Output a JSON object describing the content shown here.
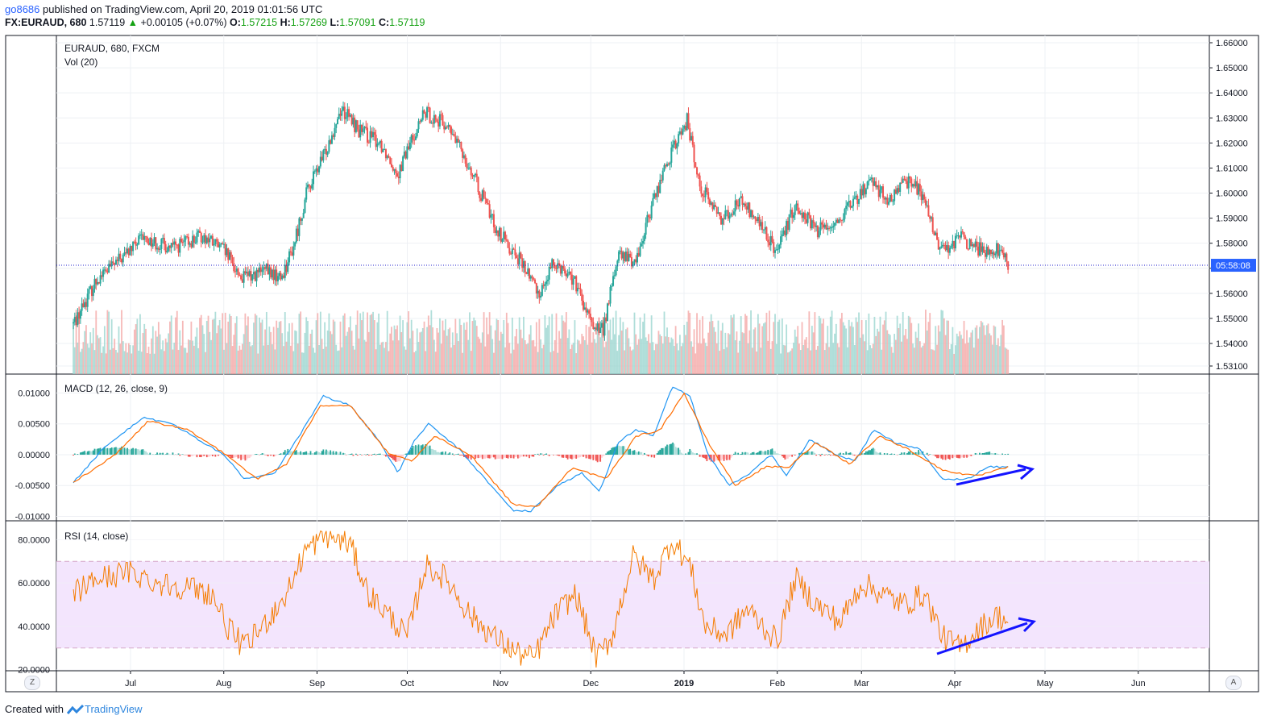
{
  "header": {
    "user": "go8686",
    "published": "published on TradingView.com, April 20, 2019 01:01:56 UTC",
    "symbol": "FX:EURAUD, 680",
    "last": "1.57119",
    "arrow": "▲",
    "change": "+0.00105 (+0.07%)",
    "o_label": "O:",
    "o_value": "1.57215",
    "h_label": "H:",
    "h_value": "1.57269",
    "l_label": "L:",
    "l_value": "1.57091",
    "c_label": "C:",
    "c_value": "1.57119"
  },
  "footer": {
    "created_with": "Created with",
    "brand": "TradingView"
  },
  "scale_buttons": {
    "left": "Z",
    "right": "A"
  },
  "colors": {
    "up": "#26a69a",
    "down": "#ef5350",
    "macd": "#2196f3",
    "signal": "#ff6d00",
    "rsi": "#f57c00",
    "rsi_band": "#f3e5fd",
    "annotation": "#1414ff",
    "price_line": "#2222cc"
  },
  "chart_data": [
    {
      "type": "candlestick",
      "title": "EURAUD, 680, FXCM",
      "subtitle": "Vol (20)",
      "x_tick_labels": [
        "Jul",
        "Aug",
        "Sep",
        "Oct",
        "Nov",
        "Dec",
        "2019",
        "Feb",
        "Mar",
        "Apr",
        "May",
        "Jun"
      ],
      "y_ticks": [
        "1.66000",
        "1.65000",
        "1.64000",
        "1.63000",
        "1.62000",
        "1.61000",
        "1.60000",
        "1.59000",
        "1.58000",
        "1.57000",
        "1.56000",
        "1.55000",
        "1.54000",
        "1.53100"
      ],
      "ylim": [
        1.531,
        1.66
      ],
      "last_price_label": "05:58:08",
      "last_price": 1.5712,
      "approx_close_path": [
        [
          "2018-06-12",
          1.548
        ],
        [
          "2018-06-20",
          1.566
        ],
        [
          "2018-06-28",
          1.574
        ],
        [
          "2018-07-05",
          1.582
        ],
        [
          "2018-07-15",
          1.578
        ],
        [
          "2018-07-25",
          1.583
        ],
        [
          "2018-08-01",
          1.577
        ],
        [
          "2018-08-07",
          1.566
        ],
        [
          "2018-08-15",
          1.569
        ],
        [
          "2018-08-20",
          1.566
        ],
        [
          "2018-08-24",
          1.578
        ],
        [
          "2018-08-29",
          1.602
        ],
        [
          "2018-09-03",
          1.614
        ],
        [
          "2018-09-09",
          1.634
        ],
        [
          "2018-09-15",
          1.625
        ],
        [
          "2018-09-22",
          1.62
        ],
        [
          "2018-09-28",
          1.608
        ],
        [
          "2018-10-03",
          1.623
        ],
        [
          "2018-10-07",
          1.632
        ],
        [
          "2018-10-14",
          1.627
        ],
        [
          "2018-10-20",
          1.615
        ],
        [
          "2018-10-25",
          1.601
        ],
        [
          "2018-10-31",
          1.585
        ],
        [
          "2018-11-07",
          1.574
        ],
        [
          "2018-11-14",
          1.56
        ],
        [
          "2018-11-19",
          1.573
        ],
        [
          "2018-11-25",
          1.566
        ],
        [
          "2018-12-01",
          1.548
        ],
        [
          "2018-12-05",
          1.545
        ],
        [
          "2018-12-10",
          1.575
        ],
        [
          "2018-12-16",
          1.573
        ],
        [
          "2018-12-22",
          1.598
        ],
        [
          "2018-12-27",
          1.614
        ],
        [
          "2019-01-02",
          1.629
        ],
        [
          "2019-01-06",
          1.604
        ],
        [
          "2019-01-13",
          1.59
        ],
        [
          "2019-01-20",
          1.597
        ],
        [
          "2019-01-27",
          1.586
        ],
        [
          "2019-02-01",
          1.576
        ],
        [
          "2019-02-07",
          1.596
        ],
        [
          "2019-02-14",
          1.585
        ],
        [
          "2019-02-21",
          1.589
        ],
        [
          "2019-02-28",
          1.598
        ],
        [
          "2019-03-04",
          1.606
        ],
        [
          "2019-03-10",
          1.596
        ],
        [
          "2019-03-17",
          1.606
        ],
        [
          "2019-03-22",
          1.597
        ],
        [
          "2019-03-27",
          1.577
        ],
        [
          "2019-04-03",
          1.582
        ],
        [
          "2019-04-10",
          1.577
        ],
        [
          "2019-04-15",
          1.578
        ],
        [
          "2019-04-19",
          1.5712
        ]
      ]
    },
    {
      "type": "line+histogram",
      "title": "MACD (12, 26, close, 9)",
      "y_ticks": [
        "0.01000",
        "0.00500",
        "0.00000",
        "-0.00500",
        "-0.01000"
      ],
      "ylim": [
        -0.0102,
        0.0115
      ],
      "series": [
        {
          "name": "MACD",
          "values": [
            [
              "2018-06-12",
              -0.0045
            ],
            [
              "2018-06-22",
              0.001
            ],
            [
              "2018-07-05",
              0.006
            ],
            [
              "2018-07-15",
              0.005
            ],
            [
              "2018-07-25",
              0.002
            ],
            [
              "2018-08-01",
              0.0
            ],
            [
              "2018-08-08",
              -0.004
            ],
            [
              "2018-08-18",
              -0.003
            ],
            [
              "2018-08-26",
              0.003
            ],
            [
              "2018-09-03",
              0.0095
            ],
            [
              "2018-09-12",
              0.008
            ],
            [
              "2018-09-22",
              0.002
            ],
            [
              "2018-09-28",
              -0.003
            ],
            [
              "2018-10-03",
              0.002
            ],
            [
              "2018-10-08",
              0.005
            ],
            [
              "2018-10-18",
              0.001
            ],
            [
              "2018-10-27",
              -0.004
            ],
            [
              "2018-11-05",
              -0.009
            ],
            [
              "2018-11-11",
              -0.0092
            ],
            [
              "2018-11-20",
              -0.005
            ],
            [
              "2018-11-28",
              -0.003
            ],
            [
              "2018-12-04",
              -0.006
            ],
            [
              "2018-12-10",
              0.002
            ],
            [
              "2018-12-16",
              0.004
            ],
            [
              "2018-12-22",
              0.003
            ],
            [
              "2018-12-28",
              0.011
            ],
            [
              "2019-01-03",
              0.0095
            ],
            [
              "2019-01-09",
              0.0
            ],
            [
              "2019-01-16",
              -0.005
            ],
            [
              "2019-01-23",
              -0.003
            ],
            [
              "2019-01-30",
              0.0
            ],
            [
              "2019-02-04",
              -0.0035
            ],
            [
              "2019-02-12",
              0.0025
            ],
            [
              "2019-02-20",
              0.0
            ],
            [
              "2019-02-27",
              -0.001
            ],
            [
              "2019-03-05",
              0.004
            ],
            [
              "2019-03-12",
              0.002
            ],
            [
              "2019-03-20",
              0.001
            ],
            [
              "2019-03-28",
              -0.004
            ],
            [
              "2019-04-05",
              -0.004
            ],
            [
              "2019-04-12",
              -0.002
            ],
            [
              "2019-04-19",
              -0.002
            ]
          ]
        },
        {
          "name": "Signal",
          "values": [
            [
              "2018-06-12",
              -0.0045
            ],
            [
              "2018-06-26",
              0.0
            ],
            [
              "2018-07-07",
              0.0055
            ],
            [
              "2018-07-20",
              0.004
            ],
            [
              "2018-08-02",
              0.0
            ],
            [
              "2018-08-12",
              -0.004
            ],
            [
              "2018-08-22",
              -0.0015
            ],
            [
              "2018-09-02",
              0.008
            ],
            [
              "2018-09-12",
              0.008
            ],
            [
              "2018-09-25",
              0.0
            ],
            [
              "2018-10-03",
              -0.001
            ],
            [
              "2018-10-10",
              0.003
            ],
            [
              "2018-10-22",
              0.0
            ],
            [
              "2018-11-05",
              -0.008
            ],
            [
              "2018-11-13",
              -0.0085
            ],
            [
              "2018-11-25",
              -0.002
            ],
            [
              "2018-12-06",
              -0.004
            ],
            [
              "2018-12-16",
              0.003
            ],
            [
              "2018-12-24",
              0.004
            ],
            [
              "2019-01-01",
              0.01
            ],
            [
              "2019-01-09",
              0.002
            ],
            [
              "2019-01-18",
              -0.005
            ],
            [
              "2019-01-28",
              -0.002
            ],
            [
              "2019-02-05",
              -0.002
            ],
            [
              "2019-02-14",
              0.002
            ],
            [
              "2019-02-25",
              -0.0015
            ],
            [
              "2019-03-07",
              0.003
            ],
            [
              "2019-03-16",
              0.001
            ],
            [
              "2019-03-28",
              -0.0025
            ],
            [
              "2019-04-08",
              -0.0035
            ],
            [
              "2019-04-19",
              -0.002
            ]
          ]
        }
      ]
    },
    {
      "type": "line",
      "title": "RSI (14, close)",
      "y_ticks": [
        "80.0000",
        "60.0000",
        "40.0000",
        "20.0000"
      ],
      "ylim": [
        19.5,
        85
      ],
      "band": [
        30,
        70
      ],
      "series": [
        {
          "name": "RSI",
          "values": [
            [
              "2018-06-12",
              55
            ],
            [
              "2018-06-20",
              62
            ],
            [
              "2018-07-01",
              65
            ],
            [
              "2018-07-10",
              60
            ],
            [
              "2018-07-20",
              58
            ],
            [
              "2018-07-28",
              55
            ],
            [
              "2018-08-03",
              38
            ],
            [
              "2018-08-08",
              30
            ],
            [
              "2018-08-15",
              42
            ],
            [
              "2018-08-22",
              55
            ],
            [
              "2018-08-28",
              75
            ],
            [
              "2018-09-04",
              82
            ],
            [
              "2018-09-12",
              78
            ],
            [
              "2018-09-18",
              55
            ],
            [
              "2018-09-25",
              45
            ],
            [
              "2018-10-01",
              35
            ],
            [
              "2018-10-07",
              68
            ],
            [
              "2018-10-14",
              62
            ],
            [
              "2018-10-22",
              45
            ],
            [
              "2018-10-30",
              35
            ],
            [
              "2018-11-06",
              28
            ],
            [
              "2018-11-12",
              25
            ],
            [
              "2018-11-19",
              45
            ],
            [
              "2018-11-26",
              55
            ],
            [
              "2018-12-03",
              25
            ],
            [
              "2018-12-08",
              35
            ],
            [
              "2018-12-15",
              72
            ],
            [
              "2018-12-22",
              62
            ],
            [
              "2018-12-28",
              80
            ],
            [
              "2019-01-03",
              68
            ],
            [
              "2019-01-08",
              40
            ],
            [
              "2019-01-15",
              36
            ],
            [
              "2019-01-22",
              48
            ],
            [
              "2019-02-01",
              33
            ],
            [
              "2019-02-07",
              62
            ],
            [
              "2019-02-14",
              50
            ],
            [
              "2019-02-22",
              42
            ],
            [
              "2019-03-01",
              60
            ],
            [
              "2019-03-08",
              55
            ],
            [
              "2019-03-15",
              50
            ],
            [
              "2019-03-22",
              55
            ],
            [
              "2019-03-28",
              35
            ],
            [
              "2019-04-03",
              30
            ],
            [
              "2019-04-08",
              38
            ],
            [
              "2019-04-15",
              45
            ],
            [
              "2019-04-19",
              42
            ]
          ]
        }
      ]
    }
  ]
}
